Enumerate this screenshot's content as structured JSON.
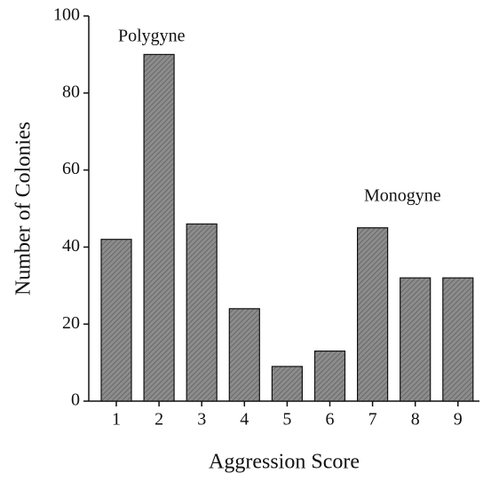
{
  "chart_data": {
    "type": "bar",
    "x_label": "Aggression Score",
    "y_label": "Number of Colonies",
    "annotations": [
      "Polygyne",
      "Monogyne"
    ],
    "categories": [
      "1",
      "2",
      "3",
      "4",
      "5",
      "6",
      "7",
      "8",
      "9"
    ],
    "values": [
      42,
      90,
      46,
      24,
      9,
      13,
      45,
      32,
      32
    ],
    "color": "#8c8c8c",
    "ylim": [
      0,
      100
    ],
    "yticks": [
      0,
      20,
      40,
      60,
      80,
      100
    ],
    "grid": false
  }
}
